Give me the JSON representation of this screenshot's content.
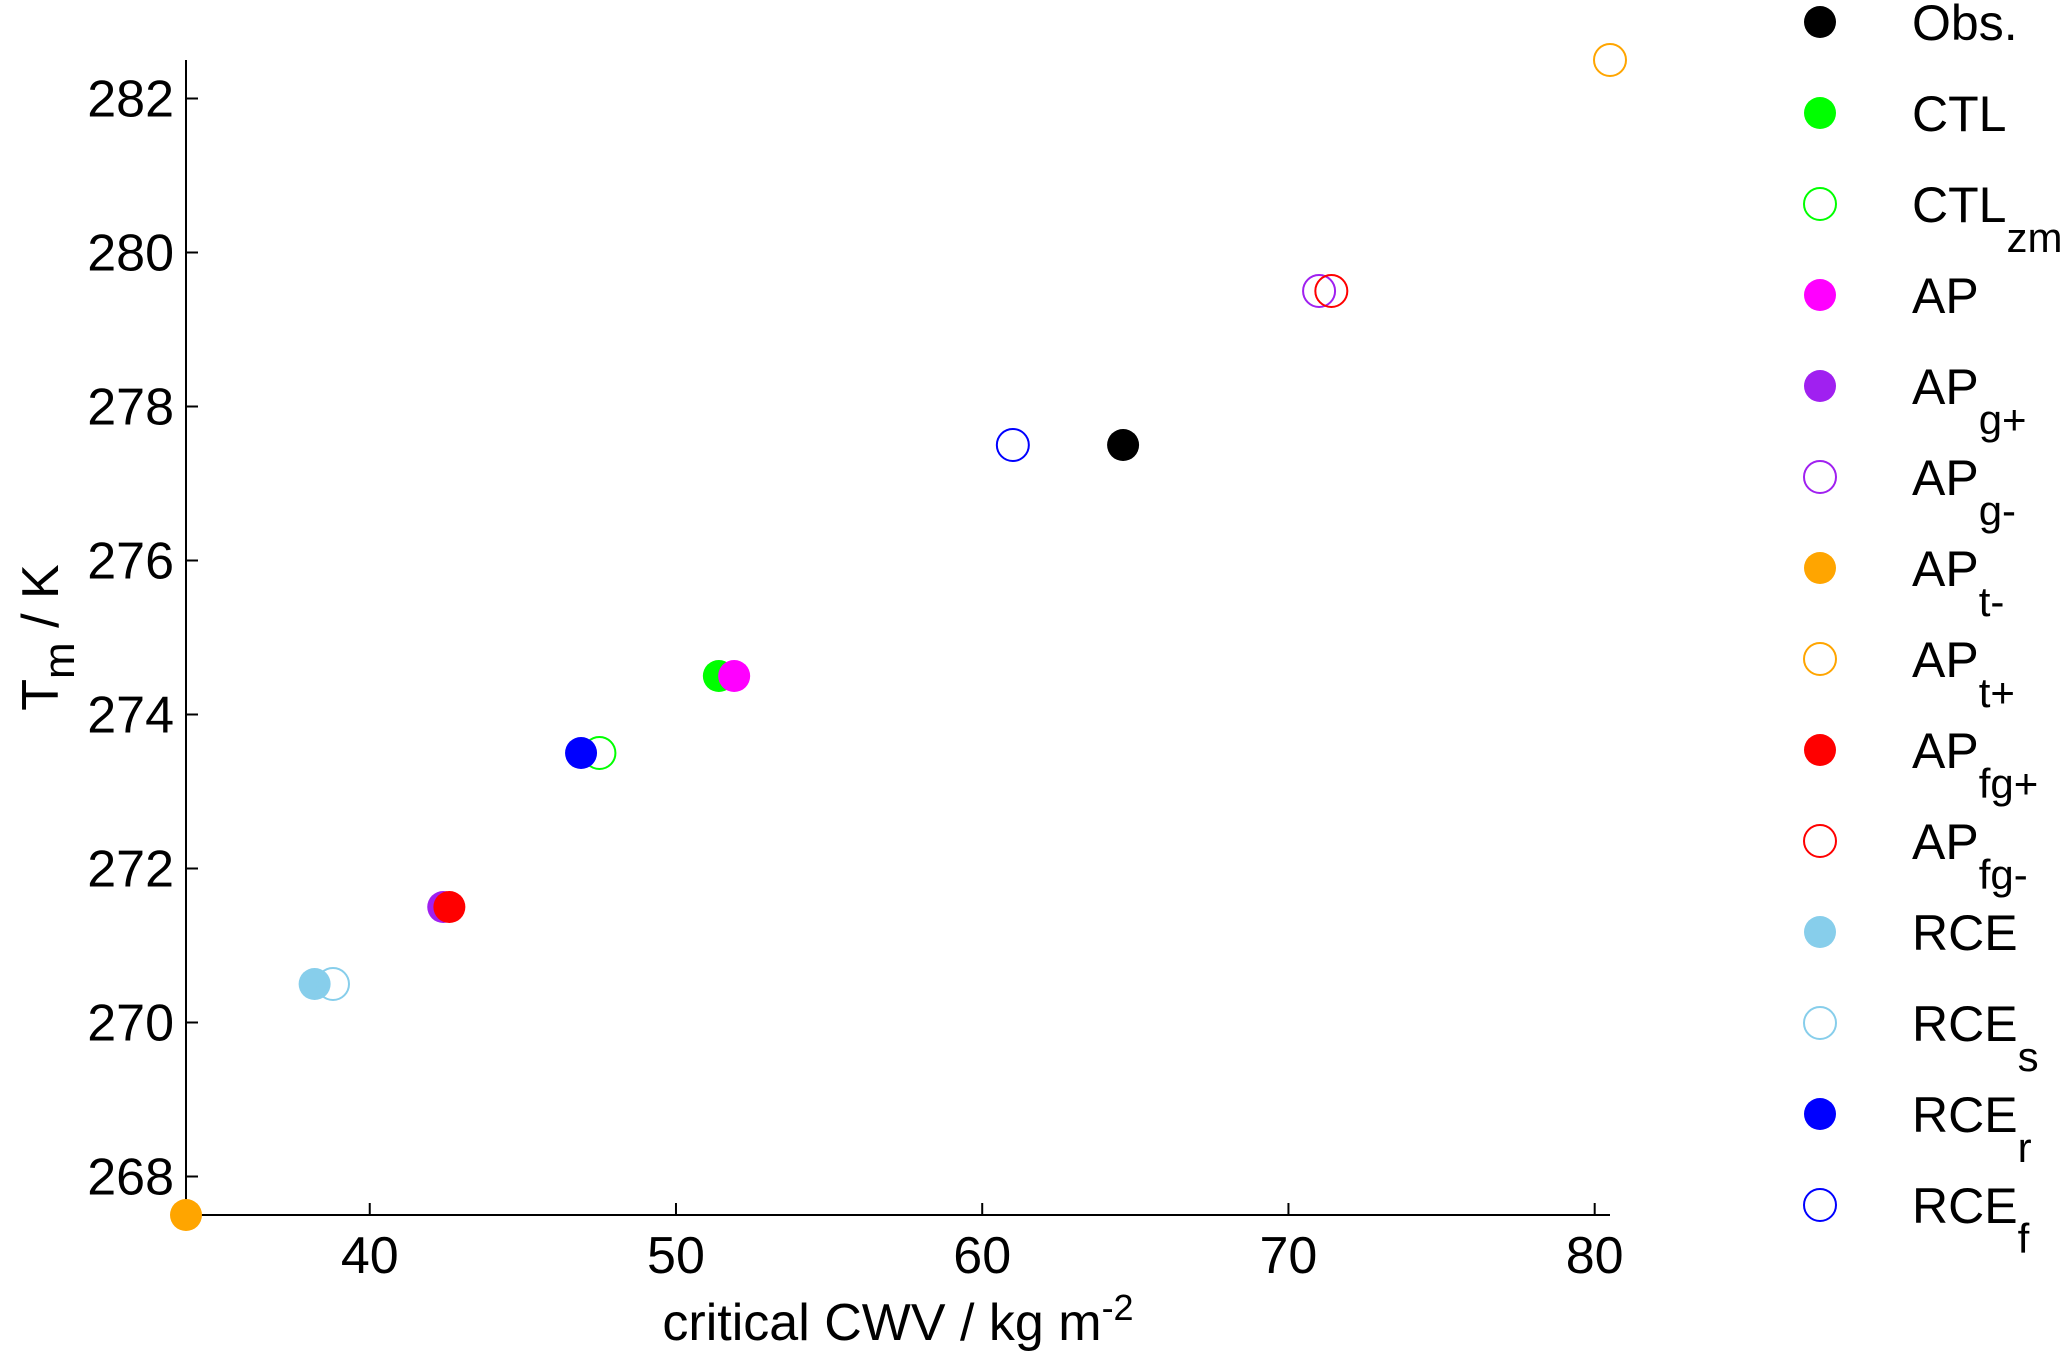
{
  "chart_data": {
    "type": "scatter",
    "xlabel": {
      "main": "critical CWV / kg m",
      "sup": "-2"
    },
    "ylabel": {
      "main": "T",
      "sub": "m",
      "rest": " / K"
    },
    "xlim": [
      34,
      80.5
    ],
    "ylim": [
      267.5,
      282.5
    ],
    "x_ticks": [
      40,
      50,
      60,
      70,
      80
    ],
    "y_ticks": [
      268,
      270,
      272,
      274,
      276,
      278,
      280,
      282
    ],
    "grid": false,
    "legend_position": "right",
    "series": [
      {
        "name": "Obs.",
        "base": "Obs.",
        "sub": "",
        "color": "#000000",
        "filled": true,
        "points": [
          {
            "x": 64.6,
            "y": 277.5
          }
        ]
      },
      {
        "name": "CTL",
        "base": "CTL",
        "sub": "",
        "color": "#00ff00",
        "filled": true,
        "points": [
          {
            "x": 51.4,
            "y": 274.5
          }
        ]
      },
      {
        "name": "CTL_zm",
        "base": "CTL",
        "sub": "zm",
        "color": "#00ff00",
        "filled": false,
        "points": [
          {
            "x": 47.5,
            "y": 273.5
          }
        ]
      },
      {
        "name": "AP",
        "base": "AP",
        "sub": "",
        "color": "#ff00ff",
        "filled": true,
        "points": [
          {
            "x": 51.9,
            "y": 274.5
          }
        ]
      },
      {
        "name": "AP_g+",
        "base": "AP",
        "sub": "g+",
        "color": "#a020f0",
        "filled": true,
        "points": [
          {
            "x": 42.4,
            "y": 271.5
          }
        ]
      },
      {
        "name": "AP_g-",
        "base": "AP",
        "sub": "g-",
        "color": "#a020f0",
        "filled": false,
        "points": [
          {
            "x": 71.0,
            "y": 279.5
          }
        ]
      },
      {
        "name": "AP_t-",
        "base": "AP",
        "sub": "t-",
        "color": "#ffa500",
        "filled": true,
        "points": [
          {
            "x": 34.0,
            "y": 267.5
          }
        ]
      },
      {
        "name": "AP_t+",
        "base": "AP",
        "sub": "t+",
        "color": "#ffa500",
        "filled": false,
        "points": [
          {
            "x": 80.5,
            "y": 282.5
          }
        ]
      },
      {
        "name": "AP_fg+",
        "base": "AP",
        "sub": "fg+",
        "color": "#ff0000",
        "filled": true,
        "points": [
          {
            "x": 42.6,
            "y": 271.5
          }
        ]
      },
      {
        "name": "AP_fg-",
        "base": "AP",
        "sub": "fg-",
        "color": "#ff0000",
        "filled": false,
        "points": [
          {
            "x": 71.4,
            "y": 279.5
          }
        ]
      },
      {
        "name": "RCE",
        "base": "RCE",
        "sub": "",
        "color": "#87ceeb",
        "filled": true,
        "points": [
          {
            "x": 38.2,
            "y": 270.5
          }
        ]
      },
      {
        "name": "RCE_s",
        "base": "RCE",
        "sub": "s",
        "color": "#87ceeb",
        "filled": false,
        "points": [
          {
            "x": 38.8,
            "y": 270.5
          }
        ]
      },
      {
        "name": "RCE_r",
        "base": "RCE",
        "sub": "r",
        "color": "#0000ff",
        "filled": true,
        "points": [
          {
            "x": 46.9,
            "y": 273.5
          }
        ]
      },
      {
        "name": "RCE_f",
        "base": "RCE",
        "sub": "f",
        "color": "#0000ff",
        "filled": false,
        "points": [
          {
            "x": 61.0,
            "y": 277.5
          }
        ]
      }
    ]
  }
}
